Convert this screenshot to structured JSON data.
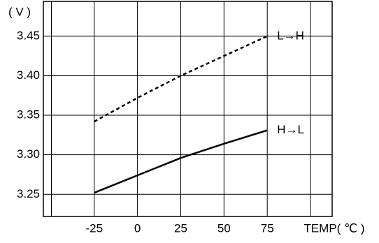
{
  "chart_data": {
    "type": "line",
    "y_label": "( V )",
    "x_label": "TEMP( ℃ )",
    "x": [
      -25,
      0,
      25,
      50,
      75
    ],
    "series": [
      {
        "name": "L→H",
        "color": "#000000",
        "style": "dashed",
        "values": [
          3.342,
          3.372,
          3.4,
          3.425,
          3.45
        ]
      },
      {
        "name": "H→L",
        "color": "#000000",
        "style": "solid",
        "values": [
          3.252,
          3.274,
          3.296,
          3.314,
          3.331
        ]
      }
    ],
    "xlim": [
      -54.4,
      112.5
    ],
    "xticks": [
      -25,
      0,
      25,
      50,
      75
    ],
    "ylim": [
      3.222,
      3.494
    ],
    "yticks": [
      3.25,
      {
        "value": 3.3,
        "label": "3.30"
      },
      3.35,
      {
        "value": 3.4,
        "label": "3.40"
      },
      3.45
    ],
    "grid": true
  }
}
